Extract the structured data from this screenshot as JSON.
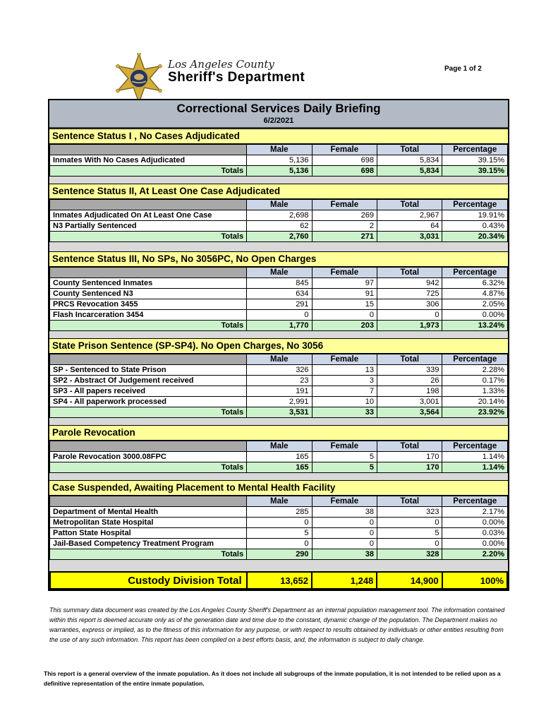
{
  "header": {
    "agency_line1": "Los Angeles County",
    "agency_line2": "Sheriff's Department",
    "page_label": "Page 1 of 2",
    "logo_icon": "sheriff-star-badge"
  },
  "title": {
    "main": "Correctional Services Daily Briefing",
    "date": "6/2/2021"
  },
  "columns": [
    "Male",
    "Female",
    "Total",
    "Percentage"
  ],
  "sections": [
    {
      "title": "Sentence Status I , No Cases Adjudicated",
      "rows": [
        {
          "label": "Inmates With No Cases Adjudicated",
          "values": [
            "5,136",
            "698",
            "5,834",
            "39.15%"
          ]
        }
      ],
      "totals": {
        "label": "Totals",
        "values": [
          "5,136",
          "698",
          "5,834",
          "39.15%"
        ]
      }
    },
    {
      "title": "Sentence Status II, At Least One Case Adjudicated",
      "rows": [
        {
          "label": "Inmates Adjudicated On At Least One Case",
          "values": [
            "2,698",
            "269",
            "2,967",
            "19.91%"
          ]
        },
        {
          "label": "N3 Partially Sentenced",
          "values": [
            "62",
            "2",
            "64",
            "0.43%"
          ]
        }
      ],
      "totals": {
        "label": "Totals",
        "values": [
          "2,760",
          "271",
          "3,031",
          "20.34%"
        ]
      }
    },
    {
      "title": "Sentence Status III, No SPs, No 3056PC, No Open Charges",
      "rows": [
        {
          "label": "County Sentenced Inmates",
          "values": [
            "845",
            "97",
            "942",
            "6.32%"
          ]
        },
        {
          "label": "County Sentenced N3",
          "values": [
            "634",
            "91",
            "725",
            "4.87%"
          ]
        },
        {
          "label": "PRCS Revocation 3455",
          "values": [
            "291",
            "15",
            "306",
            "2.05%"
          ]
        },
        {
          "label": "Flash Incarceration 3454",
          "values": [
            "0",
            "0",
            "0",
            "0.00%"
          ]
        }
      ],
      "totals": {
        "label": "Totals",
        "values": [
          "1,770",
          "203",
          "1,973",
          "13.24%"
        ]
      }
    },
    {
      "title": "State Prison Sentence (SP-SP4). No Open Charges, No 3056",
      "rows": [
        {
          "label": "SP - Sentenced to State Prison",
          "values": [
            "326",
            "13",
            "339",
            "2.28%"
          ]
        },
        {
          "label": "SP2 - Abstract Of Judgement received",
          "values": [
            "23",
            "3",
            "26",
            "0.17%"
          ]
        },
        {
          "label": "SP3 - All papers received",
          "values": [
            "191",
            "7",
            "198",
            "1.33%"
          ]
        },
        {
          "label": "SP4 - All paperwork processed",
          "values": [
            "2,991",
            "10",
            "3,001",
            "20.14%"
          ]
        }
      ],
      "totals": {
        "label": "Totals",
        "values": [
          "3,531",
          "33",
          "3,564",
          "23.92%"
        ]
      }
    },
    {
      "title": "Parole Revocation",
      "rows": [
        {
          "label": "Parole Revocation 3000.08FPC",
          "values": [
            "165",
            "5",
            "170",
            "1.14%"
          ]
        }
      ],
      "totals": {
        "label": "Totals",
        "values": [
          "165",
          "5",
          "170",
          "1.14%"
        ]
      }
    },
    {
      "title": "Case Suspended, Awaiting Placement to Mental Health Facility",
      "rows": [
        {
          "label": "Department of Mental Health",
          "values": [
            "285",
            "38",
            "323",
            "2.17%"
          ]
        },
        {
          "label": "Metropolitan State Hospital",
          "values": [
            "0",
            "0",
            "0",
            "0.00%"
          ]
        },
        {
          "label": "Patton State Hospital",
          "values": [
            "5",
            "0",
            "5",
            "0.03%"
          ]
        },
        {
          "label": "Jail-Based Competency Treatment Program",
          "values": [
            "0",
            "0",
            "0",
            "0.00%"
          ]
        }
      ],
      "totals": {
        "label": "Totals",
        "values": [
          "290",
          "38",
          "328",
          "2.20%"
        ]
      }
    }
  ],
  "grand_total": {
    "label": "Custody Division Total",
    "values": [
      "13,652",
      "1,248",
      "14,900",
      "100%"
    ]
  },
  "footer": {
    "disclaimer": "This summary data document was created by the Los Angeles County Sheriff's Department as an internal population management tool.  The information contained within this report is deemed accurate only as of the generation date and time due to the constant, dynamic change of the population.  The Department makes no warranties, express or implied, as to the fitness of this information for any purpose, or with respect to results obtained by individuals or other entities resulting from the use of any such information.  This report has been compiled on a best efforts basis, and, the information is subject to daily change.",
    "note": "This report is a general overview of the inmate population.  As it does not include all subgroups of the inmate population, it is not intended to be relied upon as a definitive representation of the entire inmate population."
  },
  "colors": {
    "section_header_bg": "#ffff99",
    "column_header_bg": "#cdd6e6",
    "column_header_blank_bg": "#a8a8a8",
    "totals_row_bg": "#ccf2cc",
    "title_bar_bg": "#b2bac6",
    "grand_total_bg": "#ffff00",
    "gap_bg": "#d9d9d9",
    "badge_gold": "#d4af37",
    "badge_navy": "#273561"
  }
}
